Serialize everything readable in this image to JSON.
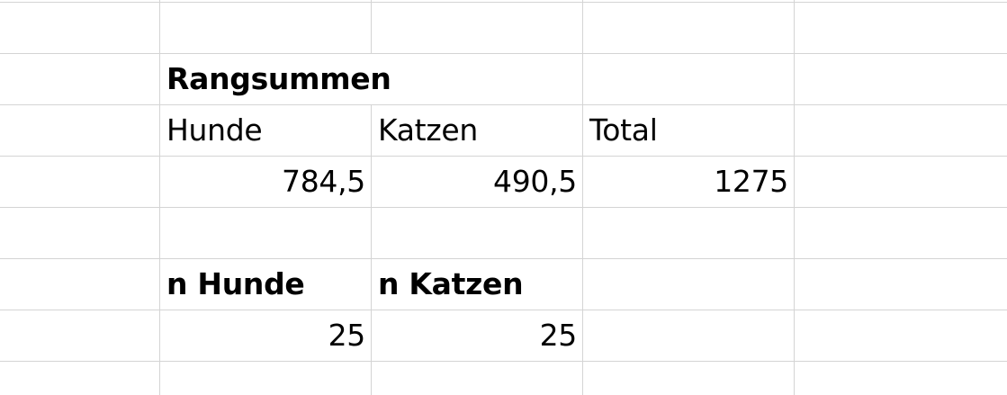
{
  "sheet": {
    "header_title": "Rangsummen",
    "labels": {
      "hunde": "Hunde",
      "katzen": "Katzen",
      "total": "Total"
    },
    "values": {
      "hunde": "784,5",
      "katzen": "490,5",
      "total": "1275"
    },
    "n_labels": {
      "hunde": "n Hunde",
      "katzen": "n Katzen"
    },
    "n_values": {
      "hunde": "25",
      "katzen": "25"
    }
  },
  "colors": {
    "gridline": "#d4d4d4",
    "text": "#000000",
    "background": "#ffffff"
  }
}
